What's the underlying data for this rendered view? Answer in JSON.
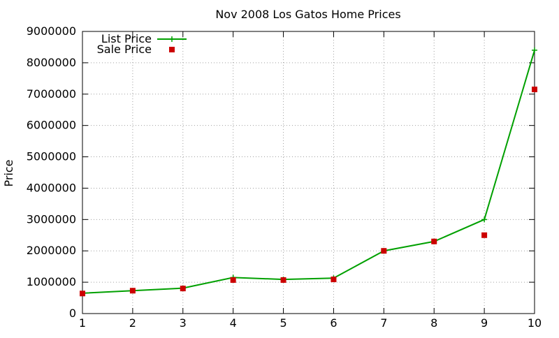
{
  "chart_data": {
    "type": "line",
    "title": "Nov 2008 Los Gatos Home Prices",
    "xlabel": "",
    "ylabel": "Price",
    "x": [
      1,
      2,
      3,
      4,
      5,
      6,
      7,
      8,
      9,
      10
    ],
    "xlim": [
      1,
      10
    ],
    "ylim": [
      0,
      9000000
    ],
    "xticks": [
      "1",
      "2",
      "3",
      "4",
      "5",
      "6",
      "7",
      "8",
      "9",
      "10"
    ],
    "yticks": [
      "0",
      "1000000",
      "2000000",
      "3000000",
      "4000000",
      "5000000",
      "6000000",
      "7000000",
      "8000000",
      "9000000"
    ],
    "grid": true,
    "legend_position": "top-left",
    "series": [
      {
        "name": "List Price",
        "style": "line-with-plus-markers",
        "color": "#00a000",
        "values": [
          650000,
          730000,
          810000,
          1150000,
          1090000,
          1130000,
          2000000,
          2300000,
          3000000,
          8400000
        ]
      },
      {
        "name": "Sale Price",
        "style": "square-markers",
        "color": "#cc0000",
        "values": [
          640000,
          730000,
          800000,
          1070000,
          1070000,
          1090000,
          2000000,
          2300000,
          2500000,
          7150000
        ]
      }
    ]
  }
}
